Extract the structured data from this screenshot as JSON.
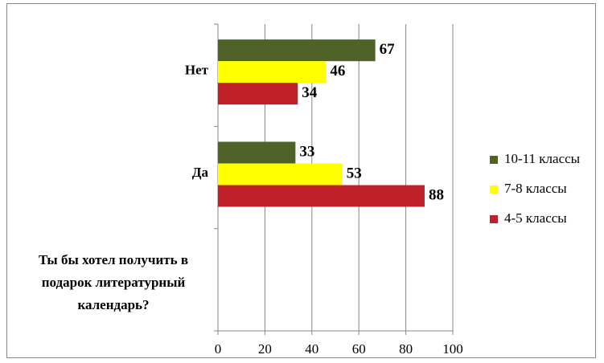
{
  "chart_data": {
    "type": "hbar",
    "categories": [
      "Нет",
      "Да",
      "Ты бы хотел получить в подарок литературный календарь?"
    ],
    "series": [
      {
        "name": "10-11 классы",
        "color": "#4f6228",
        "values": [
          67,
          33,
          null
        ]
      },
      {
        "name": "7-8 классы",
        "color": "#ffff00",
        "values": [
          46,
          53,
          null
        ]
      },
      {
        "name": "4-5 классы",
        "color": "#c0202a",
        "values": [
          34,
          88,
          null
        ]
      }
    ],
    "xlim": [
      0,
      100
    ],
    "xticks": [
      0,
      20,
      40,
      60,
      80,
      100
    ],
    "grid": true,
    "legend": "right"
  }
}
